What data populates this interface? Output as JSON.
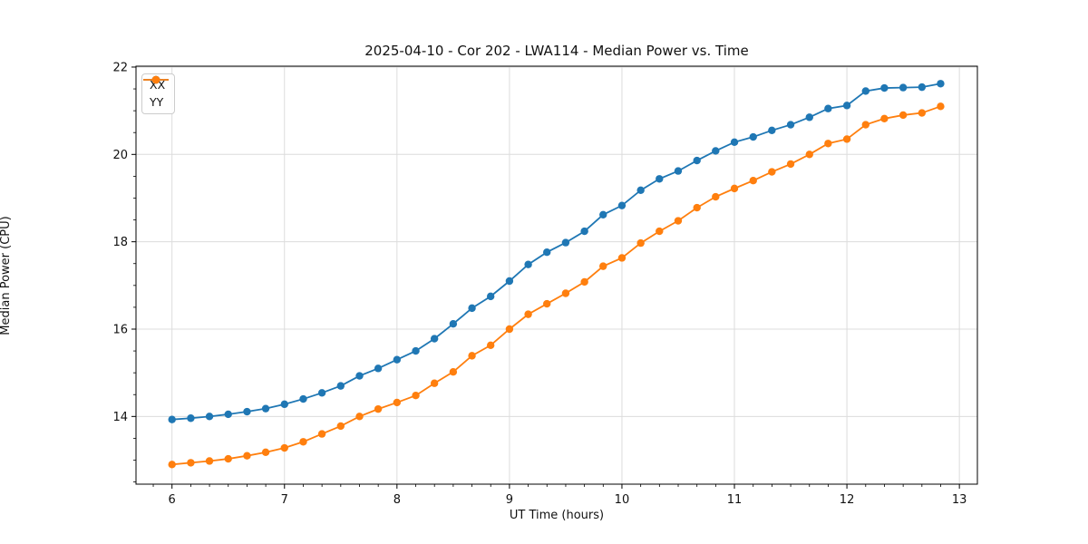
{
  "figure": {
    "title": "2025-04-10 - Cor 202 - LWA114 - Median Power vs. Time",
    "xlabel": "UT Time (hours)",
    "ylabel": "Median Power (CPU)"
  },
  "chart_data": {
    "type": "line",
    "title": "2025-04-10 - Cor 202 - LWA114 - Median Power vs. Time",
    "xlabel": "UT Time (hours)",
    "ylabel": "Median Power (CPU)",
    "xlim": [
      5.68,
      13.16
    ],
    "ylim": [
      12.45,
      22.02
    ],
    "x_ticks": [
      6,
      7,
      8,
      9,
      10,
      11,
      12,
      13
    ],
    "y_ticks": [
      14,
      16,
      18,
      20,
      22
    ],
    "minor_tick_step_x": 0.16667,
    "minor_tick_step_y": 0.5,
    "grid": true,
    "grid_color": "#dcdcdc",
    "legend_position": "upper-left",
    "marker": "circle",
    "x": [
      6.0,
      6.167,
      6.333,
      6.5,
      6.667,
      6.833,
      7.0,
      7.167,
      7.333,
      7.5,
      7.667,
      7.833,
      8.0,
      8.167,
      8.333,
      8.5,
      8.667,
      8.833,
      9.0,
      9.167,
      9.333,
      9.5,
      9.667,
      9.833,
      10.0,
      10.167,
      10.333,
      10.5,
      10.667,
      10.833,
      11.0,
      11.167,
      11.333,
      11.5,
      11.667,
      11.833,
      12.0,
      12.167,
      12.333,
      12.5,
      12.667,
      12.833
    ],
    "series": [
      {
        "name": "XX",
        "color": "#1f77b4",
        "values": [
          13.93,
          13.96,
          14.0,
          14.05,
          14.11,
          14.18,
          14.28,
          14.4,
          14.54,
          14.7,
          14.93,
          15.1,
          15.3,
          15.5,
          15.78,
          16.12,
          16.48,
          16.75,
          17.1,
          17.48,
          17.76,
          17.98,
          18.24,
          18.62,
          18.83,
          19.18,
          19.44,
          19.62,
          19.86,
          20.08,
          20.28,
          20.4,
          20.55,
          20.68,
          20.85,
          21.05,
          21.12,
          21.45,
          21.52,
          21.53,
          21.54,
          21.62
        ]
      },
      {
        "name": "YY",
        "color": "#ff7f0e",
        "values": [
          12.9,
          12.94,
          12.98,
          13.03,
          13.1,
          13.18,
          13.28,
          13.42,
          13.6,
          13.78,
          14.0,
          14.17,
          14.32,
          14.48,
          14.76,
          15.02,
          15.39,
          15.63,
          16.0,
          16.34,
          16.58,
          16.82,
          17.08,
          17.44,
          17.63,
          17.97,
          18.24,
          18.48,
          18.78,
          19.03,
          19.22,
          19.4,
          19.6,
          19.78,
          20.0,
          20.25,
          20.35,
          20.68,
          20.82,
          20.9,
          20.95,
          21.1
        ]
      }
    ]
  }
}
